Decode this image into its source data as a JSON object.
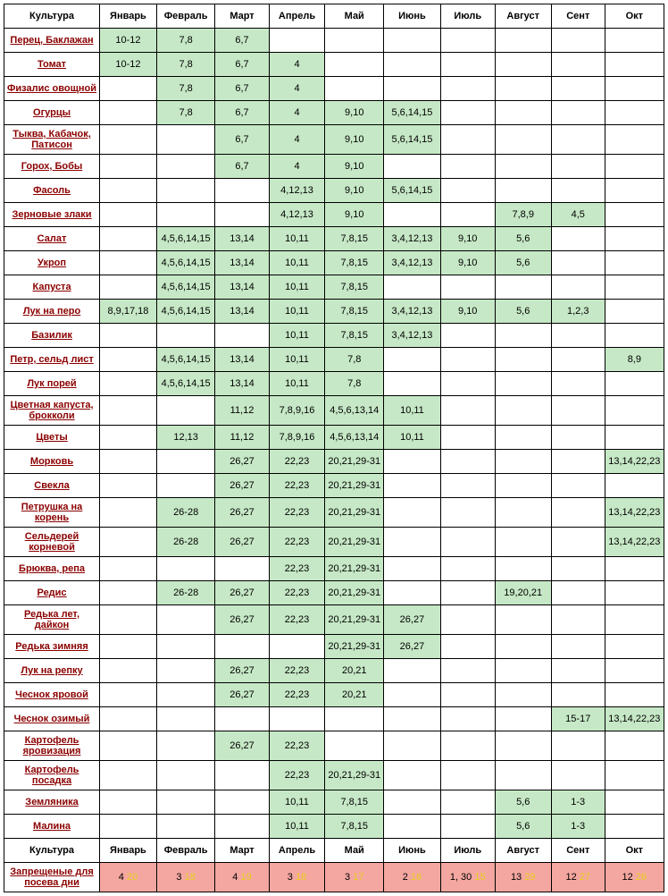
{
  "headers": [
    "Культура",
    "Январь",
    "Февраль",
    "Март",
    "Апрель",
    "Май",
    "Июнь",
    "Июль",
    "Август",
    "Сент",
    "Окт"
  ],
  "rows": [
    {
      "name": "Перец, Баклажан",
      "cells": [
        "10-12",
        "7,8",
        "6,7",
        "",
        "",
        "",
        "",
        "",
        "",
        ""
      ]
    },
    {
      "name": "Томат",
      "cells": [
        "10-12",
        "7,8",
        "6,7",
        "4",
        "",
        "",
        "",
        "",
        "",
        ""
      ]
    },
    {
      "name": "Физалис овощной",
      "cells": [
        "",
        "7,8",
        "6,7",
        "4",
        "",
        "",
        "",
        "",
        "",
        ""
      ]
    },
    {
      "name": "Огурцы",
      "cells": [
        "",
        "7,8",
        "6,7",
        "4",
        "9,10",
        "5,6,14,15",
        "",
        "",
        "",
        ""
      ]
    },
    {
      "name": "Тыква, Кабачок, Патисон",
      "cells": [
        "",
        "",
        "6,7",
        "4",
        "9,10",
        "5,6,14,15",
        "",
        "",
        "",
        ""
      ]
    },
    {
      "name": "Горох, Бобы",
      "cells": [
        "",
        "",
        "6,7",
        "4",
        "9,10",
        "",
        "",
        "",
        "",
        ""
      ]
    },
    {
      "name": "Фасоль",
      "cells": [
        "",
        "",
        "",
        "4,12,13",
        "9,10",
        "5,6,14,15",
        "",
        "",
        "",
        ""
      ]
    },
    {
      "name": "Зерновые злаки",
      "cells": [
        "",
        "",
        "",
        "4,12,13",
        "9,10",
        "",
        "",
        "7,8,9",
        "4,5",
        ""
      ]
    },
    {
      "name": "Салат",
      "cells": [
        "",
        "4,5,6,14,15",
        "13,14",
        "10,11",
        "7,8,15",
        "3,4,12,13",
        "9,10",
        "5,6",
        "",
        ""
      ]
    },
    {
      "name": "Укроп",
      "cells": [
        "",
        "4,5,6,14,15",
        "13,14",
        "10,11",
        "7,8,15",
        "3,4,12,13",
        "9,10",
        "5,6",
        "",
        ""
      ]
    },
    {
      "name": "Капуста",
      "cells": [
        "",
        "4,5,6,14,15",
        "13,14",
        "10,11",
        "7,8,15",
        "",
        "",
        "",
        "",
        ""
      ]
    },
    {
      "name": "Лук на перо",
      "cells": [
        "8,9,17,18",
        "4,5,6,14,15",
        "13,14",
        "10,11",
        "7,8,15",
        "3,4,12,13",
        "9,10",
        "5,6",
        "1,2,3",
        ""
      ]
    },
    {
      "name": "Базилик",
      "cells": [
        "",
        "",
        "",
        "10,11",
        "7,8,15",
        "3,4,12,13",
        "",
        "",
        "",
        ""
      ]
    },
    {
      "name": "Петр, сельд лист",
      "cells": [
        "",
        "4,5,6,14,15",
        "13,14",
        "10,11",
        "7,8",
        "",
        "",
        "",
        "",
        "8,9"
      ]
    },
    {
      "name": "Лук порей",
      "cells": [
        "",
        "4,5,6,14,15",
        "13,14",
        "10,11",
        "7,8",
        "",
        "",
        "",
        "",
        ""
      ]
    },
    {
      "name": "Цветная капуста, брокколи",
      "cells": [
        "",
        "",
        "11,12",
        "7,8,9,16",
        "4,5,6,13,14",
        "10,11",
        "",
        "",
        "",
        ""
      ]
    },
    {
      "name": "Цветы",
      "cells": [
        "",
        "12,13",
        "11,12",
        "7,8,9,16",
        "4,5,6,13,14",
        "10,11",
        "",
        "",
        "",
        ""
      ]
    },
    {
      "name": "Морковь",
      "cells": [
        "",
        "",
        "26,27",
        "22,23",
        "20,21,29-31",
        "",
        "",
        "",
        "",
        "13,14,22,23"
      ]
    },
    {
      "name": "Свекла",
      "cells": [
        "",
        "",
        "26,27",
        "22,23",
        "20,21,29-31",
        "",
        "",
        "",
        "",
        ""
      ]
    },
    {
      "name": "Петрушка на корень",
      "cells": [
        "",
        "26-28",
        "26,27",
        "22,23",
        "20,21,29-31",
        "",
        "",
        "",
        "",
        "13,14,22,23"
      ]
    },
    {
      "name": "Сельдерей корневой",
      "cells": [
        "",
        "26-28",
        "26,27",
        "22,23",
        "20,21,29-31",
        "",
        "",
        "",
        "",
        "13,14,22,23"
      ]
    },
    {
      "name": "Брюква, репа",
      "cells": [
        "",
        "",
        "",
        "22,23",
        "20,21,29-31",
        "",
        "",
        "",
        "",
        ""
      ]
    },
    {
      "name": "Редис",
      "cells": [
        "",
        "26-28",
        "26,27",
        "22,23",
        "20,21,29-31",
        "",
        "",
        "19,20,21",
        "",
        ""
      ]
    },
    {
      "name": "Редька лет, дайкон",
      "cells": [
        "",
        "",
        "26,27",
        "22,23",
        "20,21,29-31",
        "26,27",
        "",
        "",
        "",
        ""
      ]
    },
    {
      "name": "Редька зимняя",
      "cells": [
        "",
        "",
        "",
        "",
        "20,21,29-31",
        "26,27",
        "",
        "",
        "",
        ""
      ]
    },
    {
      "name": "Лук на репку",
      "cells": [
        "",
        "",
        "26,27",
        "22,23",
        "20,21",
        "",
        "",
        "",
        "",
        ""
      ]
    },
    {
      "name": "Чеснок яровой",
      "cells": [
        "",
        "",
        "26,27",
        "22,23",
        "20,21",
        "",
        "",
        "",
        "",
        ""
      ]
    },
    {
      "name": "Чеснок озимый",
      "cells": [
        "",
        "",
        "",
        "",
        "",
        "",
        "",
        "",
        "15-17",
        "13,14,22,23"
      ]
    },
    {
      "name": "Картофель яровизация",
      "cells": [
        "",
        "",
        "26,27",
        "22,23",
        "",
        "",
        "",
        "",
        "",
        ""
      ]
    },
    {
      "name": "Картофель посадка",
      "cells": [
        "",
        "",
        "",
        "22,23",
        "20,21,29-31",
        "",
        "",
        "",
        "",
        ""
      ]
    },
    {
      "name": "Земляника",
      "cells": [
        "",
        "",
        "",
        "10,11",
        "7,8,15",
        "",
        "",
        "5,6",
        "1-3",
        ""
      ]
    },
    {
      "name": "Малина",
      "cells": [
        "",
        "",
        "",
        "10,11",
        "7,8,15",
        "",
        "",
        "5,6",
        "1-3",
        ""
      ]
    }
  ],
  "footerHeader": [
    "Культура",
    "Январь",
    "Февраль",
    "Март",
    "Апрель",
    "Май",
    "Июнь",
    "Июль",
    "Август",
    "Сент",
    "Окт"
  ],
  "forbidden": {
    "label": "Запрещеные для посева дни",
    "cells": [
      {
        "a": "4",
        "b": "20"
      },
      {
        "a": "3",
        "b": "18"
      },
      {
        "a": "4",
        "b": "19"
      },
      {
        "a": "3",
        "b": "18"
      },
      {
        "a": "3",
        "b": "17"
      },
      {
        "a": "2",
        "b": "16"
      },
      {
        "a": "1, 30",
        "b": "15"
      },
      {
        "a": "13",
        "b": "29"
      },
      {
        "a": "12",
        "b": "27"
      },
      {
        "a": "12",
        "b": "26"
      }
    ]
  }
}
